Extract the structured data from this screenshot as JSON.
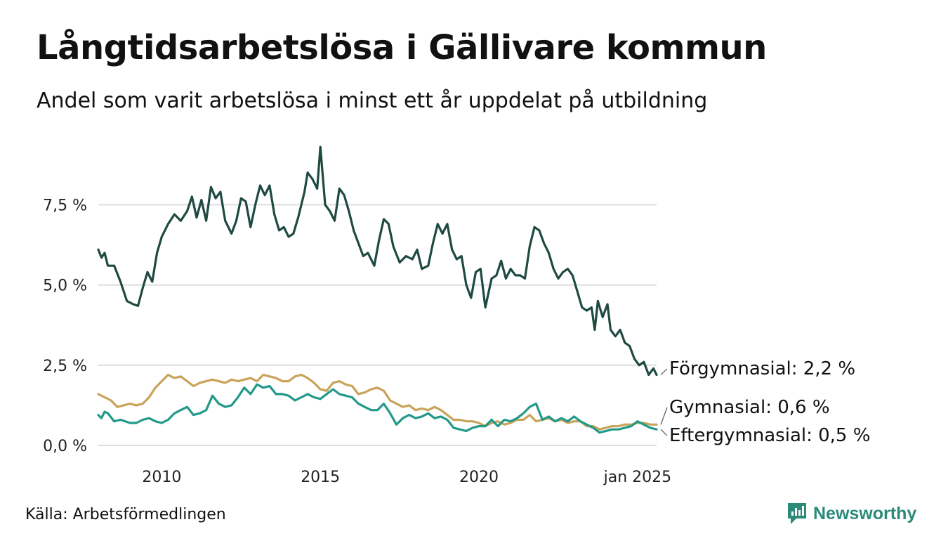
{
  "chart_data": {
    "type": "line",
    "title": "Långtidsarbetslösa i Gällivare kommun",
    "subtitle": "Andel som varit arbetslösa i minst ett år uppdelat på utbildning",
    "xlabel": "",
    "ylabel": "",
    "ylim": [
      0,
      9.5
    ],
    "xlim": [
      2008.0,
      2025.0
    ],
    "y_ticks": [
      {
        "value": 0,
        "label": "0,0 %"
      },
      {
        "value": 2.5,
        "label": "2,5 %"
      },
      {
        "value": 5,
        "label": "5,0 %"
      },
      {
        "value": 7.5,
        "label": "7,5 %"
      }
    ],
    "x_ticks": [
      {
        "value": 2010,
        "label": "2010"
      },
      {
        "value": 2015,
        "label": "2015"
      },
      {
        "value": 2020,
        "label": "2020"
      },
      {
        "value": 2025,
        "label": "jan 2025"
      }
    ],
    "grid": true,
    "series": [
      {
        "name": "Förgymnasial",
        "end_label": "Förgymnasial: 2,2 %",
        "color": "#1f4a42",
        "points": [
          [
            2008.0,
            6.1
          ],
          [
            2008.1,
            5.85
          ],
          [
            2008.2,
            6.0
          ],
          [
            2008.3,
            5.6
          ],
          [
            2008.5,
            5.6
          ],
          [
            2008.7,
            5.1
          ],
          [
            2008.9,
            4.5
          ],
          [
            2009.1,
            4.4
          ],
          [
            2009.25,
            4.35
          ],
          [
            2009.4,
            4.9
          ],
          [
            2009.55,
            5.4
          ],
          [
            2009.7,
            5.1
          ],
          [
            2009.85,
            6.0
          ],
          [
            2010.0,
            6.5
          ],
          [
            2010.2,
            6.9
          ],
          [
            2010.4,
            7.2
          ],
          [
            2010.6,
            7.0
          ],
          [
            2010.8,
            7.3
          ],
          [
            2010.95,
            7.75
          ],
          [
            2011.1,
            7.1
          ],
          [
            2011.25,
            7.65
          ],
          [
            2011.4,
            7.0
          ],
          [
            2011.55,
            8.05
          ],
          [
            2011.7,
            7.7
          ],
          [
            2011.85,
            7.9
          ],
          [
            2012.0,
            7.0
          ],
          [
            2012.2,
            6.6
          ],
          [
            2012.35,
            7.0
          ],
          [
            2012.5,
            7.7
          ],
          [
            2012.65,
            7.6
          ],
          [
            2012.8,
            6.8
          ],
          [
            2012.95,
            7.5
          ],
          [
            2013.1,
            8.1
          ],
          [
            2013.25,
            7.8
          ],
          [
            2013.4,
            8.1
          ],
          [
            2013.55,
            7.2
          ],
          [
            2013.7,
            6.7
          ],
          [
            2013.85,
            6.8
          ],
          [
            2014.0,
            6.5
          ],
          [
            2014.15,
            6.6
          ],
          [
            2014.3,
            7.1
          ],
          [
            2014.5,
            7.9
          ],
          [
            2014.6,
            8.5
          ],
          [
            2014.75,
            8.3
          ],
          [
            2014.9,
            8.0
          ],
          [
            2015.0,
            9.3
          ],
          [
            2015.15,
            7.5
          ],
          [
            2015.3,
            7.3
          ],
          [
            2015.45,
            7.0
          ],
          [
            2015.6,
            8.0
          ],
          [
            2015.75,
            7.8
          ],
          [
            2015.9,
            7.3
          ],
          [
            2016.05,
            6.7
          ],
          [
            2016.2,
            6.3
          ],
          [
            2016.35,
            5.9
          ],
          [
            2016.5,
            6.0
          ],
          [
            2016.7,
            5.6
          ],
          [
            2016.85,
            6.4
          ],
          [
            2017.0,
            7.05
          ],
          [
            2017.15,
            6.9
          ],
          [
            2017.3,
            6.2
          ],
          [
            2017.5,
            5.7
          ],
          [
            2017.7,
            5.9
          ],
          [
            2017.9,
            5.8
          ],
          [
            2018.05,
            6.1
          ],
          [
            2018.2,
            5.5
          ],
          [
            2018.4,
            5.6
          ],
          [
            2018.55,
            6.3
          ],
          [
            2018.7,
            6.9
          ],
          [
            2018.85,
            6.6
          ],
          [
            2019.0,
            6.9
          ],
          [
            2019.15,
            6.1
          ],
          [
            2019.3,
            5.8
          ],
          [
            2019.45,
            5.9
          ],
          [
            2019.6,
            5.0
          ],
          [
            2019.75,
            4.6
          ],
          [
            2019.9,
            5.4
          ],
          [
            2020.05,
            5.5
          ],
          [
            2020.2,
            4.3
          ],
          [
            2020.4,
            5.2
          ],
          [
            2020.55,
            5.3
          ],
          [
            2020.7,
            5.75
          ],
          [
            2020.85,
            5.2
          ],
          [
            2021.0,
            5.5
          ],
          [
            2021.15,
            5.3
          ],
          [
            2021.3,
            5.3
          ],
          [
            2021.45,
            5.2
          ],
          [
            2021.6,
            6.2
          ],
          [
            2021.75,
            6.8
          ],
          [
            2021.9,
            6.7
          ],
          [
            2022.05,
            6.3
          ],
          [
            2022.2,
            6.0
          ],
          [
            2022.35,
            5.5
          ],
          [
            2022.5,
            5.2
          ],
          [
            2022.65,
            5.4
          ],
          [
            2022.8,
            5.5
          ],
          [
            2022.95,
            5.3
          ],
          [
            2023.1,
            4.8
          ],
          [
            2023.25,
            4.3
          ],
          [
            2023.4,
            4.2
          ],
          [
            2023.55,
            4.3
          ],
          [
            2023.65,
            3.6
          ],
          [
            2023.75,
            4.5
          ],
          [
            2023.9,
            4.0
          ],
          [
            2024.05,
            4.4
          ],
          [
            2024.15,
            3.6
          ],
          [
            2024.3,
            3.4
          ],
          [
            2024.45,
            3.6
          ],
          [
            2024.6,
            3.2
          ],
          [
            2024.75,
            3.1
          ],
          [
            2024.9,
            2.7
          ],
          [
            2025.05,
            2.5
          ],
          [
            2025.2,
            2.6
          ],
          [
            2025.35,
            2.2
          ],
          [
            2025.5,
            2.4
          ],
          [
            2025.6,
            2.2
          ]
        ]
      },
      {
        "name": "Gymnasial",
        "end_label": "Gymnasial: 0,6 %",
        "color": "#c9a35a",
        "points": [
          [
            2008.0,
            1.6
          ],
          [
            2008.2,
            1.5
          ],
          [
            2008.4,
            1.4
          ],
          [
            2008.6,
            1.2
          ],
          [
            2008.8,
            1.25
          ],
          [
            2009.0,
            1.3
          ],
          [
            2009.2,
            1.25
          ],
          [
            2009.4,
            1.3
          ],
          [
            2009.6,
            1.5
          ],
          [
            2009.8,
            1.8
          ],
          [
            2010.0,
            2.0
          ],
          [
            2010.2,
            2.2
          ],
          [
            2010.4,
            2.1
          ],
          [
            2010.6,
            2.15
          ],
          [
            2010.8,
            2.0
          ],
          [
            2011.0,
            1.85
          ],
          [
            2011.2,
            1.95
          ],
          [
            2011.4,
            2.0
          ],
          [
            2011.6,
            2.05
          ],
          [
            2011.8,
            2.0
          ],
          [
            2012.0,
            1.95
          ],
          [
            2012.2,
            2.05
          ],
          [
            2012.4,
            2.0
          ],
          [
            2012.6,
            2.05
          ],
          [
            2012.8,
            2.1
          ],
          [
            2013.0,
            2.0
          ],
          [
            2013.2,
            2.2
          ],
          [
            2013.4,
            2.15
          ],
          [
            2013.6,
            2.1
          ],
          [
            2013.8,
            2.0
          ],
          [
            2014.0,
            2.0
          ],
          [
            2014.2,
            2.15
          ],
          [
            2014.4,
            2.2
          ],
          [
            2014.6,
            2.1
          ],
          [
            2014.8,
            1.95
          ],
          [
            2015.0,
            1.75
          ],
          [
            2015.2,
            1.7
          ],
          [
            2015.4,
            1.95
          ],
          [
            2015.6,
            2.0
          ],
          [
            2015.8,
            1.9
          ],
          [
            2016.0,
            1.85
          ],
          [
            2016.2,
            1.6
          ],
          [
            2016.4,
            1.65
          ],
          [
            2016.6,
            1.75
          ],
          [
            2016.8,
            1.8
          ],
          [
            2017.0,
            1.7
          ],
          [
            2017.2,
            1.4
          ],
          [
            2017.4,
            1.3
          ],
          [
            2017.6,
            1.2
          ],
          [
            2017.8,
            1.25
          ],
          [
            2018.0,
            1.1
          ],
          [
            2018.2,
            1.15
          ],
          [
            2018.4,
            1.1
          ],
          [
            2018.6,
            1.2
          ],
          [
            2018.8,
            1.1
          ],
          [
            2019.0,
            0.95
          ],
          [
            2019.2,
            0.8
          ],
          [
            2019.4,
            0.8
          ],
          [
            2019.6,
            0.75
          ],
          [
            2019.8,
            0.75
          ],
          [
            2020.0,
            0.7
          ],
          [
            2020.2,
            0.6
          ],
          [
            2020.4,
            0.7
          ],
          [
            2020.6,
            0.75
          ],
          [
            2020.8,
            0.65
          ],
          [
            2021.0,
            0.7
          ],
          [
            2021.2,
            0.8
          ],
          [
            2021.4,
            0.8
          ],
          [
            2021.6,
            0.95
          ],
          [
            2021.8,
            0.75
          ],
          [
            2022.0,
            0.8
          ],
          [
            2022.2,
            0.85
          ],
          [
            2022.4,
            0.75
          ],
          [
            2022.6,
            0.8
          ],
          [
            2022.8,
            0.7
          ],
          [
            2023.0,
            0.75
          ],
          [
            2023.2,
            0.75
          ],
          [
            2023.4,
            0.6
          ],
          [
            2023.6,
            0.6
          ],
          [
            2023.8,
            0.5
          ],
          [
            2024.0,
            0.55
          ],
          [
            2024.2,
            0.6
          ],
          [
            2024.4,
            0.6
          ],
          [
            2024.6,
            0.65
          ],
          [
            2024.8,
            0.65
          ],
          [
            2025.0,
            0.7
          ],
          [
            2025.2,
            0.7
          ],
          [
            2025.4,
            0.65
          ],
          [
            2025.6,
            0.65
          ]
        ]
      },
      {
        "name": "Eftergymnasial",
        "end_label": "Eftergymnasial: 0,5 %",
        "color": "#22998a",
        "points": [
          [
            2008.0,
            0.95
          ],
          [
            2008.1,
            0.85
          ],
          [
            2008.2,
            1.05
          ],
          [
            2008.3,
            1.0
          ],
          [
            2008.5,
            0.75
          ],
          [
            2008.7,
            0.8
          ],
          [
            2009.0,
            0.7
          ],
          [
            2009.2,
            0.7
          ],
          [
            2009.4,
            0.8
          ],
          [
            2009.6,
            0.85
          ],
          [
            2009.8,
            0.75
          ],
          [
            2010.0,
            0.7
          ],
          [
            2010.2,
            0.8
          ],
          [
            2010.4,
            1.0
          ],
          [
            2010.6,
            1.1
          ],
          [
            2010.8,
            1.2
          ],
          [
            2011.0,
            0.95
          ],
          [
            2011.2,
            1.0
          ],
          [
            2011.4,
            1.1
          ],
          [
            2011.6,
            1.55
          ],
          [
            2011.8,
            1.3
          ],
          [
            2012.0,
            1.2
          ],
          [
            2012.2,
            1.25
          ],
          [
            2012.4,
            1.5
          ],
          [
            2012.6,
            1.8
          ],
          [
            2012.8,
            1.6
          ],
          [
            2013.0,
            1.9
          ],
          [
            2013.2,
            1.8
          ],
          [
            2013.4,
            1.85
          ],
          [
            2013.6,
            1.6
          ],
          [
            2013.8,
            1.6
          ],
          [
            2014.0,
            1.55
          ],
          [
            2014.2,
            1.4
          ],
          [
            2014.4,
            1.5
          ],
          [
            2014.6,
            1.6
          ],
          [
            2014.8,
            1.5
          ],
          [
            2015.0,
            1.45
          ],
          [
            2015.2,
            1.6
          ],
          [
            2015.4,
            1.75
          ],
          [
            2015.6,
            1.6
          ],
          [
            2015.8,
            1.55
          ],
          [
            2016.0,
            1.5
          ],
          [
            2016.2,
            1.3
          ],
          [
            2016.4,
            1.2
          ],
          [
            2016.6,
            1.1
          ],
          [
            2016.8,
            1.1
          ],
          [
            2017.0,
            1.3
          ],
          [
            2017.2,
            1.0
          ],
          [
            2017.4,
            0.65
          ],
          [
            2017.6,
            0.85
          ],
          [
            2017.8,
            0.95
          ],
          [
            2018.0,
            0.85
          ],
          [
            2018.2,
            0.9
          ],
          [
            2018.4,
            1.0
          ],
          [
            2018.6,
            0.85
          ],
          [
            2018.8,
            0.9
          ],
          [
            2019.0,
            0.8
          ],
          [
            2019.2,
            0.55
          ],
          [
            2019.4,
            0.5
          ],
          [
            2019.6,
            0.45
          ],
          [
            2019.8,
            0.55
          ],
          [
            2020.0,
            0.6
          ],
          [
            2020.2,
            0.6
          ],
          [
            2020.4,
            0.8
          ],
          [
            2020.6,
            0.6
          ],
          [
            2020.8,
            0.8
          ],
          [
            2021.0,
            0.75
          ],
          [
            2021.2,
            0.85
          ],
          [
            2021.4,
            1.0
          ],
          [
            2021.6,
            1.2
          ],
          [
            2021.8,
            1.3
          ],
          [
            2022.0,
            0.8
          ],
          [
            2022.2,
            0.9
          ],
          [
            2022.4,
            0.75
          ],
          [
            2022.6,
            0.85
          ],
          [
            2022.8,
            0.75
          ],
          [
            2023.0,
            0.9
          ],
          [
            2023.2,
            0.75
          ],
          [
            2023.4,
            0.65
          ],
          [
            2023.6,
            0.55
          ],
          [
            2023.8,
            0.4
          ],
          [
            2024.0,
            0.45
          ],
          [
            2024.2,
            0.5
          ],
          [
            2024.4,
            0.5
          ],
          [
            2024.6,
            0.55
          ],
          [
            2024.8,
            0.6
          ],
          [
            2025.0,
            0.75
          ],
          [
            2025.2,
            0.65
          ],
          [
            2025.4,
            0.55
          ],
          [
            2025.6,
            0.5
          ]
        ]
      }
    ],
    "source": "Källa: Arbetsförmedlingen",
    "brand": "Newsworthy"
  },
  "colors": {
    "grid": "#dddddd",
    "brand": "#2b8a7a"
  }
}
